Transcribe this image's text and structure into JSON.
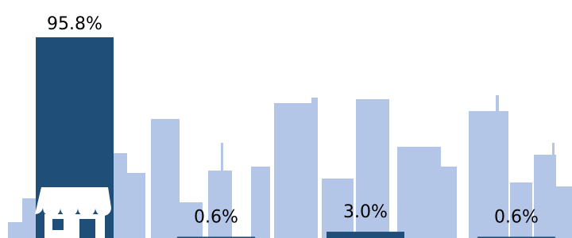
{
  "chart_data": {
    "type": "bar",
    "values": [
      95.8,
      0.6,
      3.0,
      0.6
    ],
    "value_labels": [
      "95.8%",
      "0.6%",
      "3.0%",
      "0.6%"
    ],
    "color": "#1f4e79"
  }
}
